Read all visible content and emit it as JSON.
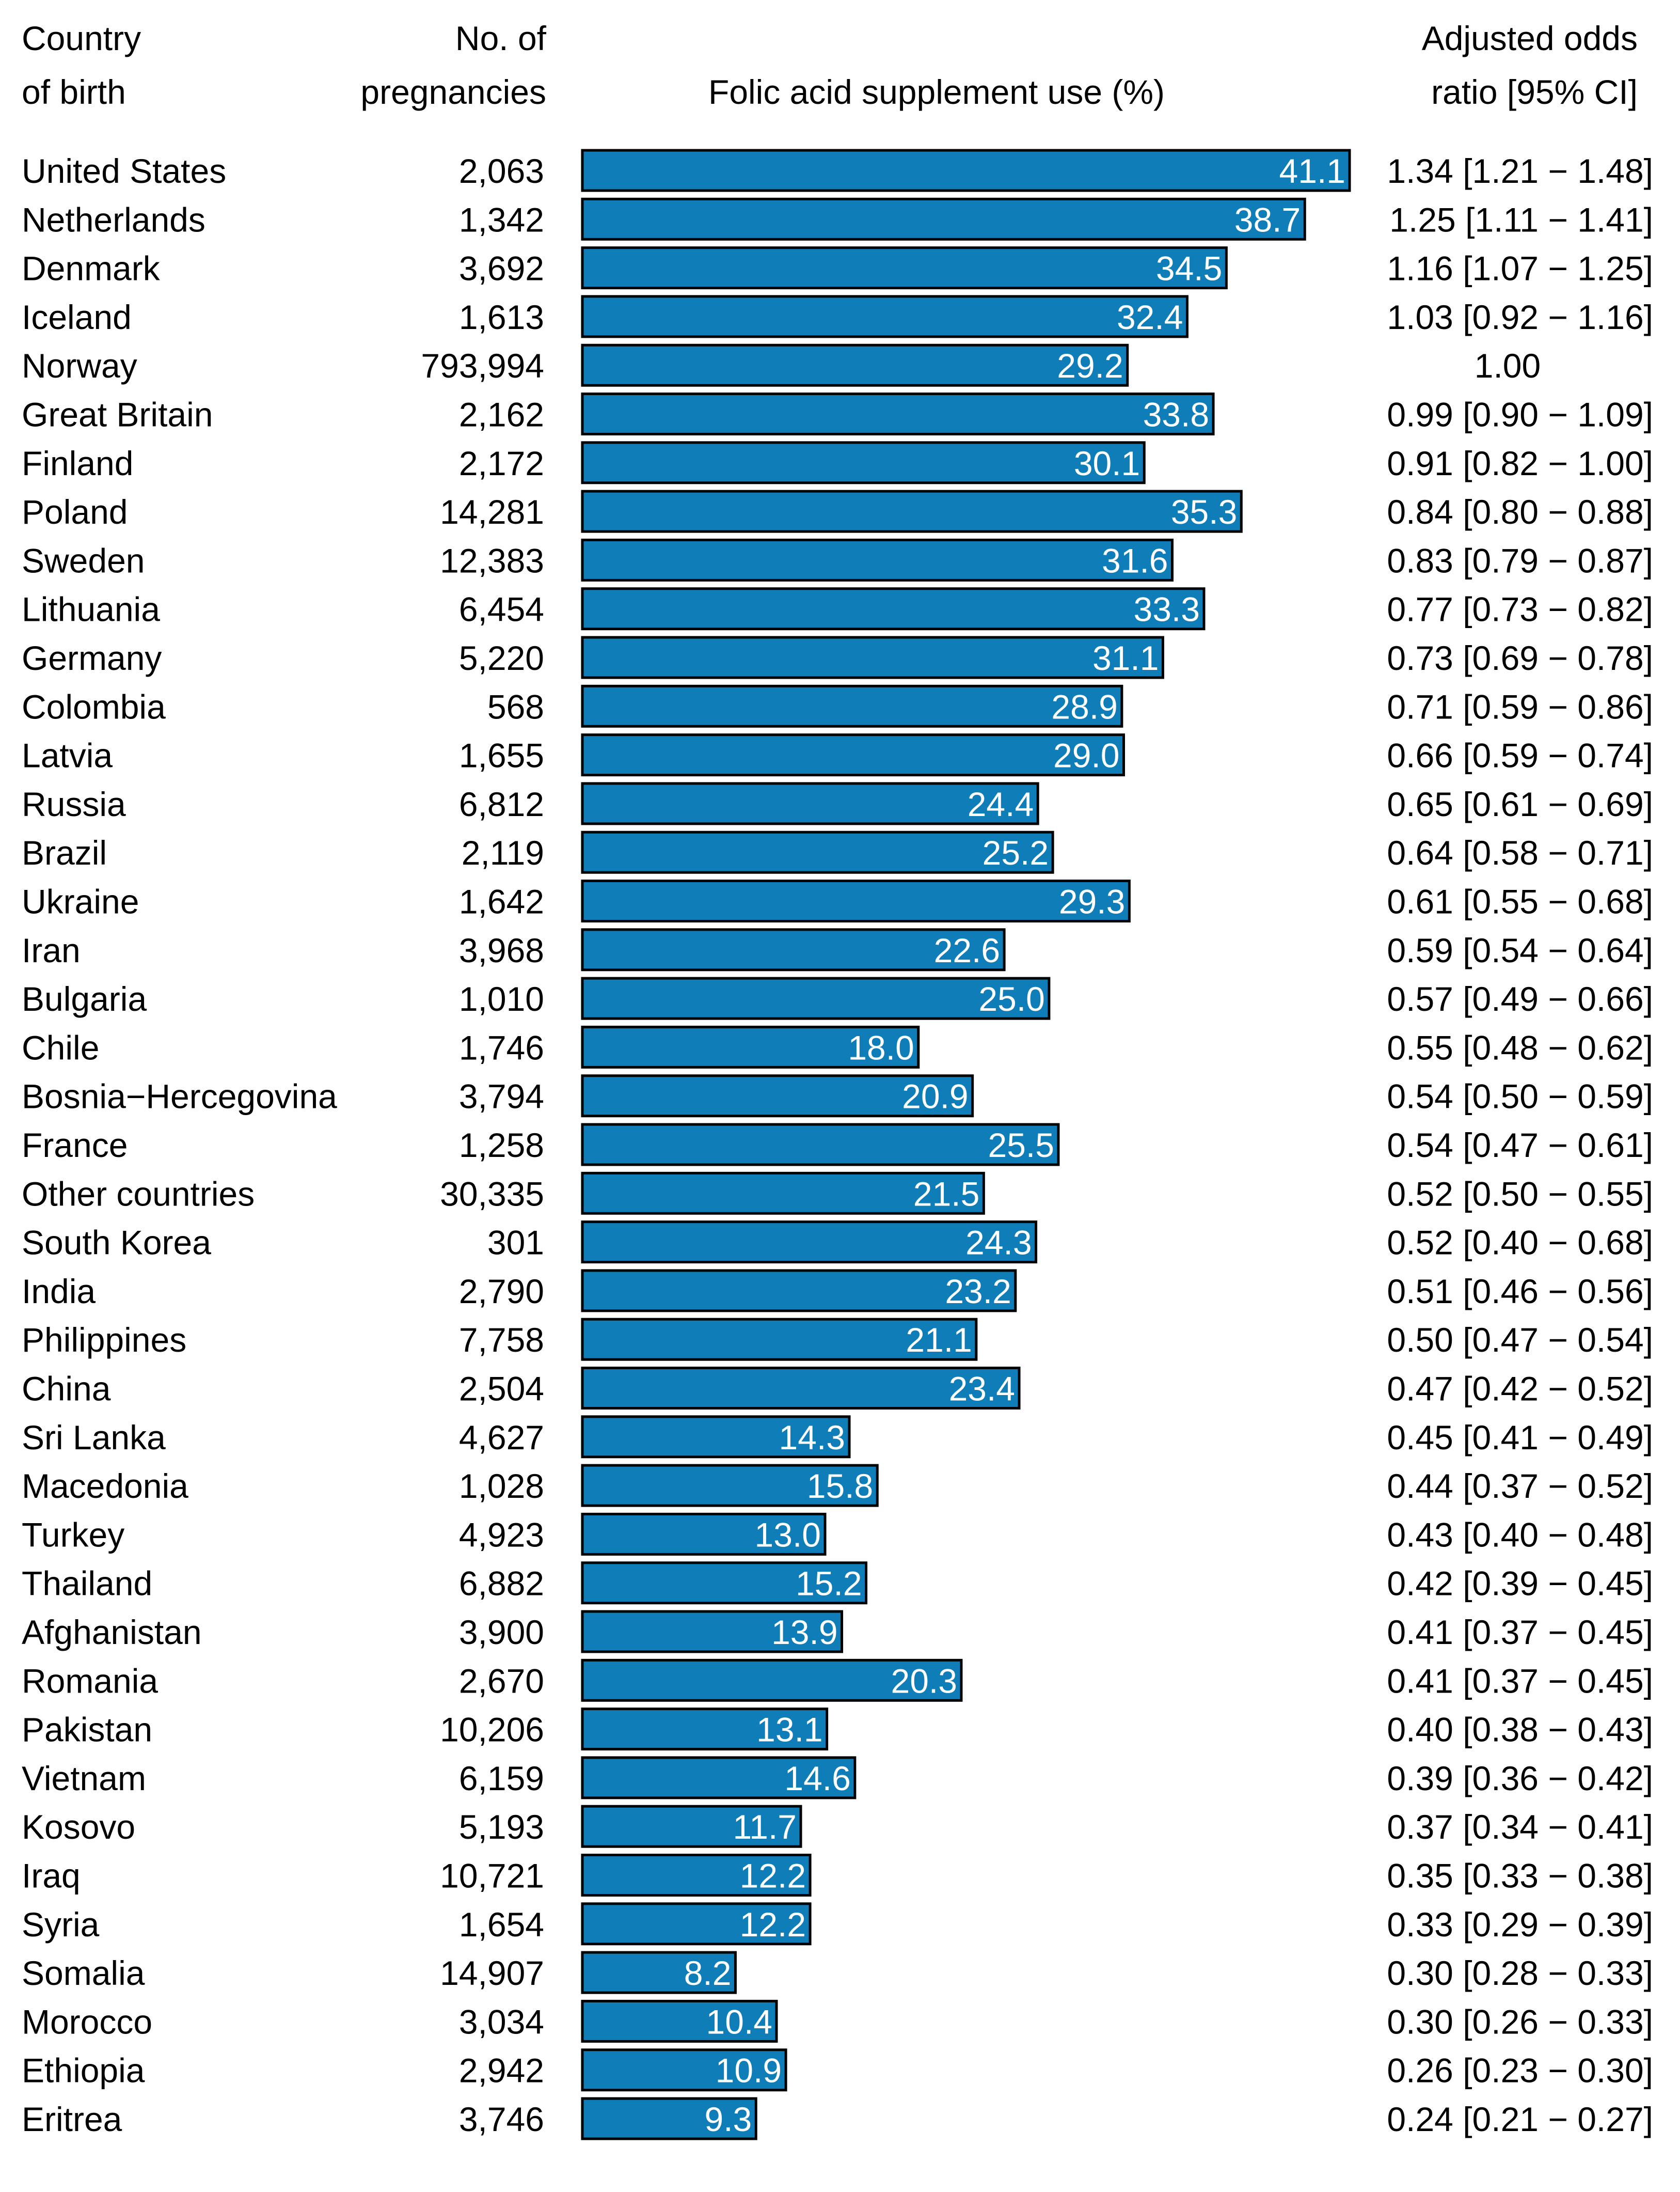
{
  "header": {
    "country_line1": "Country",
    "country_line2": "of birth",
    "pregnancies_line1": "No. of",
    "pregnancies_line2": "pregnancies",
    "bar_title": "Folic acid supplement use (%)",
    "odds_line1": "Adjusted odds",
    "odds_line2": "ratio [95% CI]"
  },
  "colors": {
    "bar_fill": "#0e7db8",
    "bar_stroke": "#000000",
    "bar_label": "#ffffff"
  },
  "chart_data": {
    "type": "bar",
    "orientation": "horizontal",
    "title": "Folic acid supplement use (%)",
    "xlabel": "Folic acid supplement use (%)",
    "ylabel": "Country of birth",
    "xlim": [
      0,
      41.1
    ],
    "grid": false,
    "legend": "none",
    "categories": [
      "United States",
      "Netherlands",
      "Denmark",
      "Iceland",
      "Norway",
      "Great Britain",
      "Finland",
      "Poland",
      "Sweden",
      "Lithuania",
      "Germany",
      "Colombia",
      "Latvia",
      "Russia",
      "Brazil",
      "Ukraine",
      "Iran",
      "Bulgaria",
      "Chile",
      "Bosnia−Hercegovina",
      "France",
      "Other countries",
      "South Korea",
      "India",
      "Philippines",
      "China",
      "Sri Lanka",
      "Macedonia",
      "Turkey",
      "Thailand",
      "Afghanistan",
      "Romania",
      "Pakistan",
      "Vietnam",
      "Kosovo",
      "Iraq",
      "Syria",
      "Somalia",
      "Morocco",
      "Ethiopia",
      "Eritrea"
    ],
    "values": [
      41.1,
      38.7,
      34.5,
      32.4,
      29.2,
      33.8,
      30.1,
      35.3,
      31.6,
      33.3,
      31.1,
      28.9,
      29.0,
      24.4,
      25.2,
      29.3,
      22.6,
      25.0,
      18.0,
      20.9,
      25.5,
      21.5,
      24.3,
      23.2,
      21.1,
      23.4,
      14.3,
      15.8,
      13.0,
      15.2,
      13.9,
      20.3,
      13.1,
      14.6,
      11.7,
      12.2,
      12.2,
      8.2,
      10.4,
      10.9,
      9.3
    ],
    "value_labels": [
      "41.1",
      "38.7",
      "34.5",
      "32.4",
      "29.2",
      "33.8",
      "30.1",
      "35.3",
      "31.6",
      "33.3",
      "31.1",
      "28.9",
      "29.0",
      "24.4",
      "25.2",
      "29.3",
      "22.6",
      "25.0",
      "18.0",
      "20.9",
      "25.5",
      "21.5",
      "24.3",
      "23.2",
      "21.1",
      "23.4",
      "14.3",
      "15.8",
      "13.0",
      "15.2",
      "13.9",
      "20.3",
      "13.1",
      "14.6",
      "11.7",
      "12.2",
      "12.2",
      "8.2",
      "10.4",
      "10.9",
      "9.3"
    ],
    "pregnancies": [
      "2,063",
      "1,342",
      "3,692",
      "1,613",
      "793,994",
      "2,162",
      "2,172",
      "14,281",
      "12,383",
      "6,454",
      "5,220",
      "568",
      "1,655",
      "6,812",
      "2,119",
      "1,642",
      "3,968",
      "1,010",
      "1,746",
      "3,794",
      "1,258",
      "30,335",
      "301",
      "2,790",
      "7,758",
      "2,504",
      "4,627",
      "1,028",
      "4,923",
      "6,882",
      "3,900",
      "2,670",
      "10,206",
      "6,159",
      "5,193",
      "10,721",
      "1,654",
      "14,907",
      "3,034",
      "2,942",
      "3,746"
    ],
    "odds_ratios": [
      "1.34 [1.21 − 1.48]",
      "1.25 [1.11 − 1.41]",
      "1.16 [1.07 − 1.25]",
      "1.03 [0.92 − 1.16]",
      "1.00",
      "0.99 [0.90 − 1.09]",
      "0.91 [0.82 − 1.00]",
      "0.84 [0.80 − 0.88]",
      "0.83 [0.79 − 0.87]",
      "0.77 [0.73 − 0.82]",
      "0.73 [0.69 − 0.78]",
      "0.71 [0.59 − 0.86]",
      "0.66 [0.59 − 0.74]",
      "0.65 [0.61 − 0.69]",
      "0.64 [0.58 − 0.71]",
      "0.61 [0.55 − 0.68]",
      "0.59 [0.54 − 0.64]",
      "0.57 [0.49 − 0.66]",
      "0.55 [0.48 − 0.62]",
      "0.54 [0.50 − 0.59]",
      "0.54 [0.47 − 0.61]",
      "0.52 [0.50 − 0.55]",
      "0.52 [0.40 − 0.68]",
      "0.51 [0.46 − 0.56]",
      "0.50 [0.47 − 0.54]",
      "0.47 [0.42 − 0.52]",
      "0.45 [0.41 − 0.49]",
      "0.44 [0.37 − 0.52]",
      "0.43 [0.40 − 0.48]",
      "0.42 [0.39 − 0.45]",
      "0.41 [0.37 − 0.45]",
      "0.41 [0.37 − 0.45]",
      "0.40 [0.38 − 0.43]",
      "0.39 [0.36 − 0.42]",
      "0.37 [0.34 − 0.41]",
      "0.35 [0.33 − 0.38]",
      "0.33 [0.29 − 0.39]",
      "0.30 [0.28 − 0.33]",
      "0.30 [0.26 − 0.33]",
      "0.26 [0.23 − 0.30]",
      "0.24 [0.21 − 0.27]"
    ]
  }
}
